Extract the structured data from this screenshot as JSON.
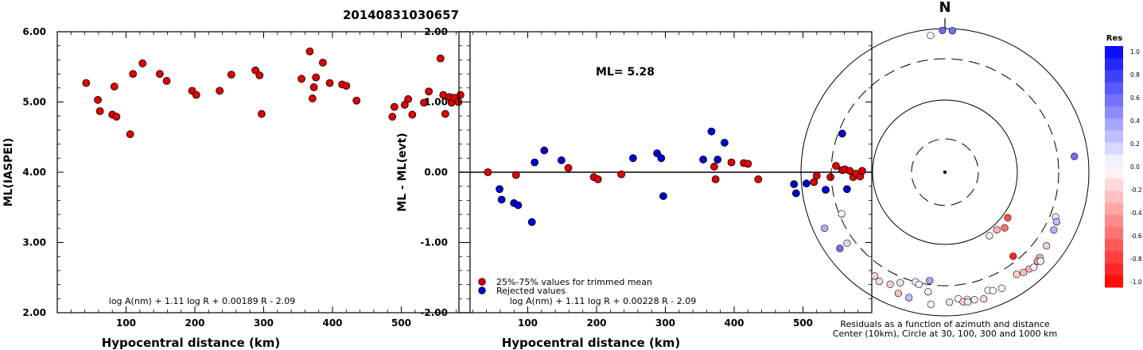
{
  "page_title": "20140831030657",
  "chart_data": [
    {
      "type": "scatter",
      "ylabel": "ML(IASPEI)",
      "xlabel": "Hypocentral distance (km)",
      "xlim": [
        0,
        600
      ],
      "ylim": [
        2.0,
        6.0
      ],
      "xticks": [
        100,
        200,
        300,
        400,
        500
      ],
      "yticks": [
        "2.00",
        "3.00",
        "4.00",
        "5.00",
        "6.00"
      ],
      "formula": "log A(nm) + 1.11 log R + 0.00189 R - 2.09",
      "colors": {
        "points": "#e00000"
      },
      "points": [
        [
          42,
          5.27
        ],
        [
          59,
          5.03
        ],
        [
          62,
          4.87
        ],
        [
          80,
          4.82
        ],
        [
          83,
          5.22
        ],
        [
          86,
          4.79
        ],
        [
          106,
          4.54
        ],
        [
          110,
          5.4
        ],
        [
          124,
          5.55
        ],
        [
          149,
          5.4
        ],
        [
          159,
          5.3
        ],
        [
          196,
          5.16
        ],
        [
          202,
          5.1
        ],
        [
          236,
          5.16
        ],
        [
          253,
          5.39
        ],
        [
          288,
          5.45
        ],
        [
          294,
          5.38
        ],
        [
          297,
          4.83
        ],
        [
          355,
          5.33
        ],
        [
          367,
          5.72
        ],
        [
          371,
          5.05
        ],
        [
          373,
          5.21
        ],
        [
          376,
          5.35
        ],
        [
          386,
          5.56
        ],
        [
          396,
          5.27
        ],
        [
          414,
          5.25
        ],
        [
          420,
          5.23
        ],
        [
          435,
          5.02
        ],
        [
          487,
          4.79
        ],
        [
          490,
          4.93
        ],
        [
          505,
          4.96
        ],
        [
          510,
          5.04
        ],
        [
          516,
          4.82
        ],
        [
          533,
          4.99
        ],
        [
          540,
          5.15
        ],
        [
          557,
          5.62
        ],
        [
          561,
          5.1
        ],
        [
          564,
          4.83
        ],
        [
          570,
          5.07
        ],
        [
          573,
          4.99
        ],
        [
          577,
          5.06
        ],
        [
          583,
          5.0
        ],
        [
          586,
          5.1
        ]
      ]
    },
    {
      "type": "scatter",
      "ylabel": "ML - ML(evt)",
      "xlabel": "Hypocentral distance (km)",
      "xlim": [
        0,
        600
      ],
      "ylim": [
        -2.0,
        2.0
      ],
      "xticks": [
        100,
        200,
        300,
        400,
        500
      ],
      "yticks": [
        "-2.00",
        "-1.00",
        "0.00",
        "1.00",
        "2.00"
      ],
      "annotation": "ML= 5.28",
      "formula": "log A(nm) + 1.11 log R + 0.00228 R - 2.09",
      "legend": [
        "25%-75% values for trimmed mean",
        "Rejected values"
      ],
      "colors": {
        "trimmed": "#e00000",
        "rejected": "#0000d0"
      },
      "series": [
        {
          "name": "25%-75% values for trimmed mean",
          "points": [
            [
              42,
              0.0
            ],
            [
              83,
              -0.04
            ],
            [
              159,
              0.06
            ],
            [
              196,
              -0.07
            ],
            [
              202,
              -0.1
            ],
            [
              236,
              -0.03
            ],
            [
              371,
              0.08
            ],
            [
              373,
              -0.1
            ],
            [
              396,
              0.14
            ],
            [
              414,
              0.13
            ],
            [
              420,
              0.12
            ],
            [
              435,
              -0.1
            ],
            [
              516,
              -0.14
            ],
            [
              520,
              -0.05
            ],
            [
              540,
              -0.07
            ],
            [
              548,
              0.09
            ],
            [
              557,
              0.03
            ],
            [
              561,
              0.04
            ],
            [
              568,
              0.02
            ],
            [
              573,
              -0.07
            ],
            [
              577,
              -0.02
            ],
            [
              583,
              -0.06
            ],
            [
              586,
              0.02
            ]
          ]
        },
        {
          "name": "Rejected values",
          "points": [
            [
              59,
              -0.24
            ],
            [
              62,
              -0.39
            ],
            [
              80,
              -0.44
            ],
            [
              86,
              -0.47
            ],
            [
              106,
              -0.71
            ],
            [
              110,
              0.14
            ],
            [
              124,
              0.31
            ],
            [
              149,
              0.17
            ],
            [
              253,
              0.2
            ],
            [
              288,
              0.27
            ],
            [
              294,
              0.2
            ],
            [
              297,
              -0.34
            ],
            [
              355,
              0.18
            ],
            [
              367,
              0.58
            ],
            [
              376,
              0.18
            ],
            [
              386,
              0.42
            ],
            [
              487,
              -0.17
            ],
            [
              490,
              -0.3
            ],
            [
              505,
              -0.16
            ],
            [
              533,
              -0.25
            ],
            [
              557,
              0.55
            ],
            [
              564,
              -0.24
            ]
          ]
        }
      ]
    },
    {
      "type": "polar-scatter",
      "north_label": "N",
      "caption_line1": "Residuals as a function of azimuth and distance",
      "caption_line2": "Center (10km), Circle at 30, 100, 300 and 1000 km",
      "colorbar_title": "Res",
      "colorbar_ticks": [
        "1.0",
        "0.8",
        "0.6",
        "0.4",
        "0.2",
        "0.0",
        "-0.2",
        "-0.4",
        "-0.6",
        "-0.8",
        "-1.0"
      ],
      "rings_km": [
        30,
        100,
        300,
        1000
      ],
      "center_km": 10,
      "points": [
        {
          "az": 3,
          "dist": 928,
          "res": 0.55
        },
        {
          "az": -1,
          "dist": 928,
          "res": 0.58
        },
        {
          "az": 354,
          "dist": 780,
          "res": 0.03
        },
        {
          "az": 83,
          "dist": 582,
          "res": 0.56
        },
        {
          "az": 248,
          "dist": 282,
          "res": 0.03
        },
        {
          "az": 145,
          "dist": 115,
          "res": 0.05
        },
        {
          "az": 138,
          "dist": 115,
          "res": -0.3
        },
        {
          "az": 133,
          "dist": 128,
          "res": -0.55
        },
        {
          "az": 126,
          "dist": 115,
          "res": -0.7
        },
        {
          "az": 141,
          "dist": 260,
          "res": -0.85
        },
        {
          "az": 112,
          "dist": 375,
          "res": 0.1
        },
        {
          "az": 114,
          "dist": 420,
          "res": 0.25
        },
        {
          "az": 118,
          "dist": 440,
          "res": 0.3
        },
        {
          "az": 245,
          "dist": 640,
          "res": 0.3
        },
        {
          "az": 234,
          "dist": 400,
          "res": 0.15
        },
        {
          "az": 234,
          "dist": 570,
          "res": 0.55
        },
        {
          "az": 211,
          "dist": 520,
          "res": -0.12
        },
        {
          "az": 206,
          "dist": 470,
          "res": -0.2
        },
        {
          "az": 202,
          "dist": 375,
          "res": 0.1
        },
        {
          "az": 195,
          "dist": 300,
          "res": 0.05
        },
        {
          "az": 193,
          "dist": 320,
          "res": 0.05
        },
        {
          "az": 188,
          "dist": 400,
          "res": 0.05
        },
        {
          "az": 188,
          "dist": 270,
          "res": 0.35
        },
        {
          "az": 201,
          "dist": 575,
          "res": -0.25
        },
        {
          "az": 214,
          "dist": 480,
          "res": -0.2
        },
        {
          "az": 196,
          "dist": 590,
          "res": 0.25
        },
        {
          "az": 186,
          "dist": 650,
          "res": 0.02
        },
        {
          "az": 174,
          "dist": 520,
          "res": 0.02
        },
        {
          "az": 170,
          "dist": 560,
          "res": 0.02
        },
        {
          "az": 167,
          "dist": 600,
          "res": 0.03
        },
        {
          "az": 160,
          "dist": 490,
          "res": 0.05
        },
        {
          "az": 158,
          "dist": 530,
          "res": 0.02
        },
        {
          "az": 154,
          "dist": 560,
          "res": 0.03
        },
        {
          "az": 145,
          "dist": 470,
          "res": -0.2
        },
        {
          "az": 142,
          "dist": 520,
          "res": -0.25
        },
        {
          "az": 139,
          "dist": 540,
          "res": -0.3
        },
        {
          "az": 137,
          "dist": 580,
          "res": 0.05
        },
        {
          "az": 132,
          "dist": 520,
          "res": -0.3
        },
        {
          "az": 134,
          "dist": 540,
          "res": -0.35
        },
        {
          "az": 133,
          "dist": 590,
          "res": 0.04
        },
        {
          "az": 126,
          "dist": 480,
          "res": -0.2
        },
        {
          "az": 178,
          "dist": 580,
          "res": 0.1
        },
        {
          "az": 172,
          "dist": 600,
          "res": -0.2
        },
        {
          "az": 170,
          "dist": 620,
          "res": 0.1
        },
        {
          "az": 163,
          "dist": 640,
          "res": -0.15
        }
      ]
    }
  ]
}
